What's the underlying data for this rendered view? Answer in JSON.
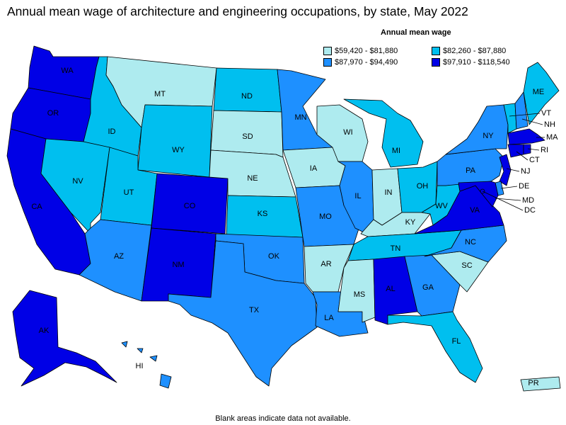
{
  "title": "Annual mean wage of architecture and engineering occupations, by state, May 2022",
  "legend": {
    "title": "Annual mean wage",
    "items": [
      {
        "label": "$59,420 - $81,880",
        "color": "#aeebef"
      },
      {
        "label": "$82,260 - $87,880",
        "color": "#00bfef"
      },
      {
        "label": "$87,970 - $94,490",
        "color": "#1e90ff"
      },
      {
        "label": "$97,910 - $118,540",
        "color": "#0000e6"
      }
    ]
  },
  "footnote": "Blank areas indicate data not available.",
  "states": [
    {
      "abbr": "WA",
      "tier": 3
    },
    {
      "abbr": "OR",
      "tier": 3
    },
    {
      "abbr": "CA",
      "tier": 3
    },
    {
      "abbr": "ID",
      "tier": 1
    },
    {
      "abbr": "NV",
      "tier": 1
    },
    {
      "abbr": "MT",
      "tier": 0
    },
    {
      "abbr": "WY",
      "tier": 1
    },
    {
      "abbr": "UT",
      "tier": 1
    },
    {
      "abbr": "AZ",
      "tier": 2
    },
    {
      "abbr": "CO",
      "tier": 3
    },
    {
      "abbr": "NM",
      "tier": 3
    },
    {
      "abbr": "ND",
      "tier": 1
    },
    {
      "abbr": "SD",
      "tier": 0
    },
    {
      "abbr": "NE",
      "tier": 0
    },
    {
      "abbr": "KS",
      "tier": 1
    },
    {
      "abbr": "OK",
      "tier": 2
    },
    {
      "abbr": "TX",
      "tier": 2
    },
    {
      "abbr": "MN",
      "tier": 2
    },
    {
      "abbr": "IA",
      "tier": 0
    },
    {
      "abbr": "MO",
      "tier": 2
    },
    {
      "abbr": "AR",
      "tier": 0
    },
    {
      "abbr": "LA",
      "tier": 2
    },
    {
      "abbr": "WI",
      "tier": 0
    },
    {
      "abbr": "IL",
      "tier": 2
    },
    {
      "abbr": "MI",
      "tier": 1
    },
    {
      "abbr": "IN",
      "tier": 0
    },
    {
      "abbr": "OH",
      "tier": 1
    },
    {
      "abbr": "KY",
      "tier": 0
    },
    {
      "abbr": "TN",
      "tier": 1
    },
    {
      "abbr": "MS",
      "tier": 0
    },
    {
      "abbr": "AL",
      "tier": 3
    },
    {
      "abbr": "GA",
      "tier": 2
    },
    {
      "abbr": "FL",
      "tier": 1
    },
    {
      "abbr": "SC",
      "tier": 0
    },
    {
      "abbr": "NC",
      "tier": 2
    },
    {
      "abbr": "VA",
      "tier": 3
    },
    {
      "abbr": "WV",
      "tier": 1
    },
    {
      "abbr": "PA",
      "tier": 2
    },
    {
      "abbr": "NY",
      "tier": 2
    },
    {
      "abbr": "VT",
      "tier": 1
    },
    {
      "abbr": "NH",
      "tier": 2
    },
    {
      "abbr": "ME",
      "tier": 1
    },
    {
      "abbr": "MA",
      "tier": 3
    },
    {
      "abbr": "RI",
      "tier": 3
    },
    {
      "abbr": "CT",
      "tier": 3
    },
    {
      "abbr": "NJ",
      "tier": 3
    },
    {
      "abbr": "DE",
      "tier": 2
    },
    {
      "abbr": "MD",
      "tier": 3
    },
    {
      "abbr": "DC",
      "tier": 3
    },
    {
      "abbr": "AK",
      "tier": 3
    },
    {
      "abbr": "HI",
      "tier": 2
    },
    {
      "abbr": "PR",
      "tier": 0
    }
  ]
}
